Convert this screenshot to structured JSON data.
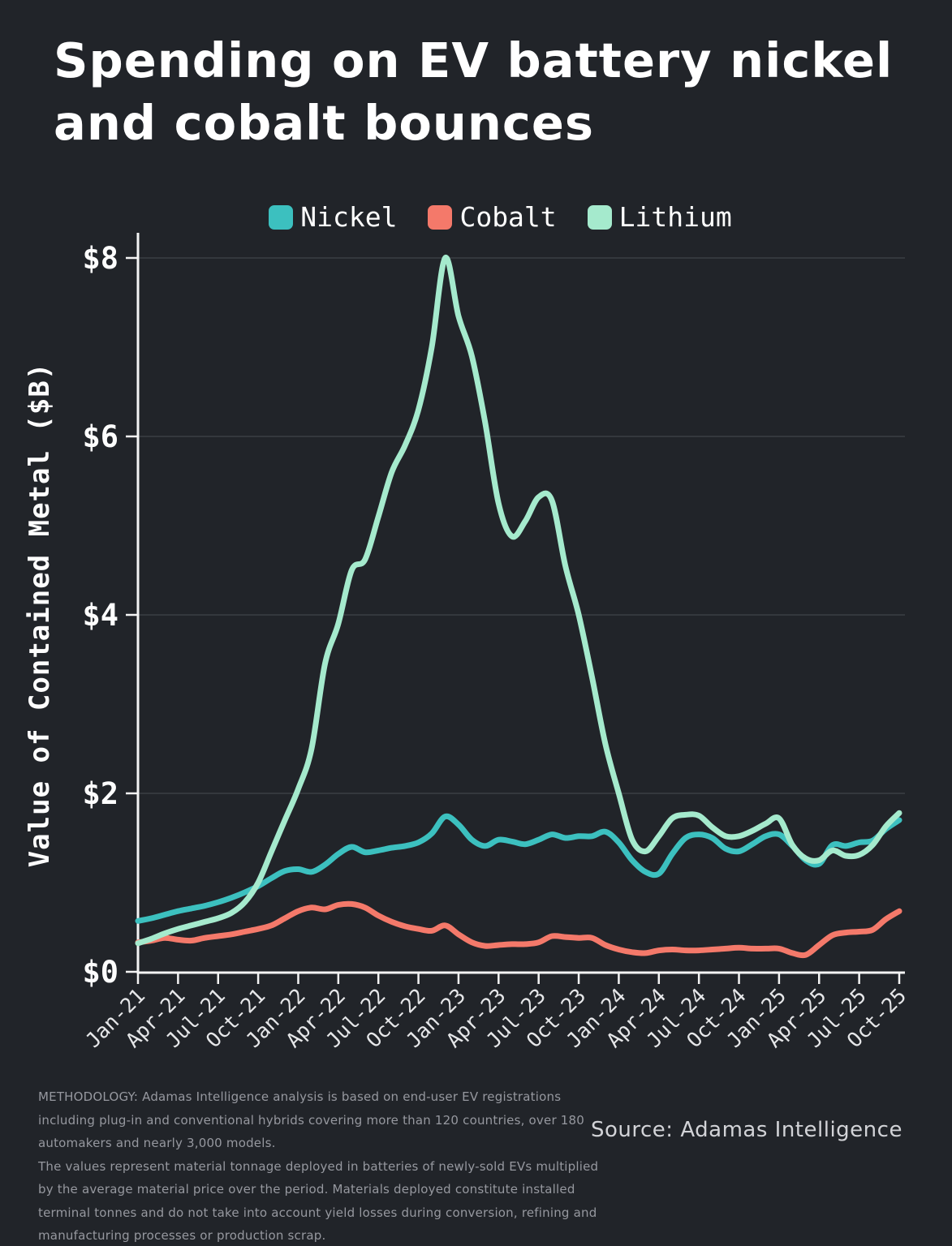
{
  "title": {
    "line1": "Spending on EV battery nickel",
    "line2": "and cobalt bounces"
  },
  "chart_data": {
    "type": "line",
    "title": "Spending on EV battery nickel and cobalt bounces",
    "xlabel": "",
    "ylabel": "Value of Contained Metal ($B)",
    "ylim": [
      0,
      8
    ],
    "ytick_values": [
      0,
      2,
      4,
      6,
      8
    ],
    "ytick_labels": [
      "$0",
      "$2",
      "$4",
      "$6",
      "$8"
    ],
    "grid": "horizontal",
    "legend_position": "top",
    "x_interval": "monthly",
    "x": [
      "Jan-21",
      "Feb-21",
      "Mar-21",
      "Apr-21",
      "May-21",
      "Jun-21",
      "Jul-21",
      "Aug-21",
      "Sep-21",
      "Oct-21",
      "Nov-21",
      "Dec-21",
      "Jan-22",
      "Feb-22",
      "Mar-22",
      "Apr-22",
      "May-22",
      "Jun-22",
      "Jul-22",
      "Aug-22",
      "Sep-22",
      "Oct-22",
      "Nov-22",
      "Dec-22",
      "Jan-23",
      "Feb-23",
      "Mar-23",
      "Apr-23",
      "May-23",
      "Jun-23",
      "Jul-23",
      "Aug-23",
      "Sep-23",
      "Oct-23",
      "Nov-23",
      "Dec-23",
      "Jan-24",
      "Feb-24",
      "Mar-24",
      "Apr-24",
      "May-24",
      "Jun-24",
      "Jul-24",
      "Aug-24",
      "Sep-24",
      "Oct-24",
      "Nov-24",
      "Dec-24",
      "Jan-25",
      "Feb-25",
      "Mar-25",
      "Apr-25",
      "May-25",
      "Jun-25",
      "Jul-25",
      "Aug-25",
      "Sep-25",
      "Oct-25"
    ],
    "x_tick_labels": [
      "Jan-21",
      "Apr-21",
      "Jul-21",
      "Oct-21",
      "Jan-22",
      "Apr-22",
      "Jul-22",
      "Oct-22",
      "Jan-23",
      "Apr-23",
      "Jul-23",
      "Oct-23",
      "Jan-24",
      "Apr-24",
      "Jul-24",
      "Oct-24",
      "Jan-25",
      "Apr-25",
      "Jul-25",
      "Oct-25"
    ],
    "series": [
      {
        "name": "Nickel",
        "color": "#3cc0bf",
        "values": [
          0.57,
          0.6,
          0.64,
          0.68,
          0.71,
          0.74,
          0.78,
          0.83,
          0.89,
          0.96,
          1.05,
          1.13,
          1.15,
          1.12,
          1.2,
          1.32,
          1.4,
          1.34,
          1.36,
          1.39,
          1.41,
          1.45,
          1.55,
          1.74,
          1.65,
          1.48,
          1.41,
          1.48,
          1.46,
          1.43,
          1.48,
          1.54,
          1.5,
          1.52,
          1.52,
          1.57,
          1.45,
          1.25,
          1.12,
          1.1,
          1.32,
          1.5,
          1.54,
          1.5,
          1.38,
          1.35,
          1.43,
          1.52,
          1.54,
          1.41,
          1.25,
          1.21,
          1.42,
          1.41,
          1.45,
          1.47,
          1.6,
          1.7
        ]
      },
      {
        "name": "Cobalt",
        "color": "#f4796a",
        "values": [
          0.33,
          0.35,
          0.38,
          0.36,
          0.35,
          0.38,
          0.4,
          0.42,
          0.45,
          0.48,
          0.52,
          0.6,
          0.68,
          0.72,
          0.7,
          0.75,
          0.76,
          0.72,
          0.63,
          0.56,
          0.51,
          0.48,
          0.46,
          0.52,
          0.42,
          0.33,
          0.29,
          0.3,
          0.31,
          0.31,
          0.33,
          0.4,
          0.39,
          0.38,
          0.38,
          0.3,
          0.25,
          0.22,
          0.21,
          0.24,
          0.25,
          0.24,
          0.24,
          0.25,
          0.26,
          0.27,
          0.26,
          0.26,
          0.26,
          0.21,
          0.19,
          0.3,
          0.41,
          0.44,
          0.45,
          0.47,
          0.59,
          0.68
        ]
      },
      {
        "name": "Lithium",
        "color": "#a5eacd",
        "values": [
          0.32,
          0.37,
          0.43,
          0.48,
          0.52,
          0.56,
          0.6,
          0.66,
          0.78,
          1.0,
          1.35,
          1.7,
          2.05,
          2.5,
          3.45,
          3.9,
          4.5,
          4.62,
          5.1,
          5.6,
          5.9,
          6.3,
          7.0,
          8.0,
          7.35,
          6.9,
          6.15,
          5.25,
          4.88,
          5.05,
          5.32,
          5.28,
          4.55,
          4.0,
          3.3,
          2.55,
          2.0,
          1.48,
          1.35,
          1.52,
          1.72,
          1.76,
          1.75,
          1.62,
          1.52,
          1.52,
          1.58,
          1.66,
          1.72,
          1.42,
          1.27,
          1.25,
          1.36,
          1.3,
          1.31,
          1.42,
          1.63,
          1.78
        ]
      }
    ]
  },
  "footer": {
    "methodology_lines": [
      "METHODOLOGY: Adamas Intelligence analysis is based on end-user EV registrations",
      "including plug-in and conventional hybrids covering more than 120 countries, over 180",
      "automakers and nearly 3,000 models.",
      "The values represent material tonnage deployed in batteries of newly-sold EVs multiplied",
      "by the average material price over the period.  Materials deployed constitute installed",
      "terminal tonnes and do not take into account yield losses during conversion, refining and",
      "manufacturing processes or production scrap."
    ],
    "source": "Source: Adamas Intelligence"
  },
  "colors": {
    "background": "#212429",
    "axis": "#f4f4f4",
    "grid": "#3b3e44",
    "y_tick_label": "#fdfdfd",
    "x_tick_label": "#e6e7e9",
    "title_text": "#ffffff",
    "methodology_text": "#96989f",
    "source_text": "#d2d3d7"
  }
}
